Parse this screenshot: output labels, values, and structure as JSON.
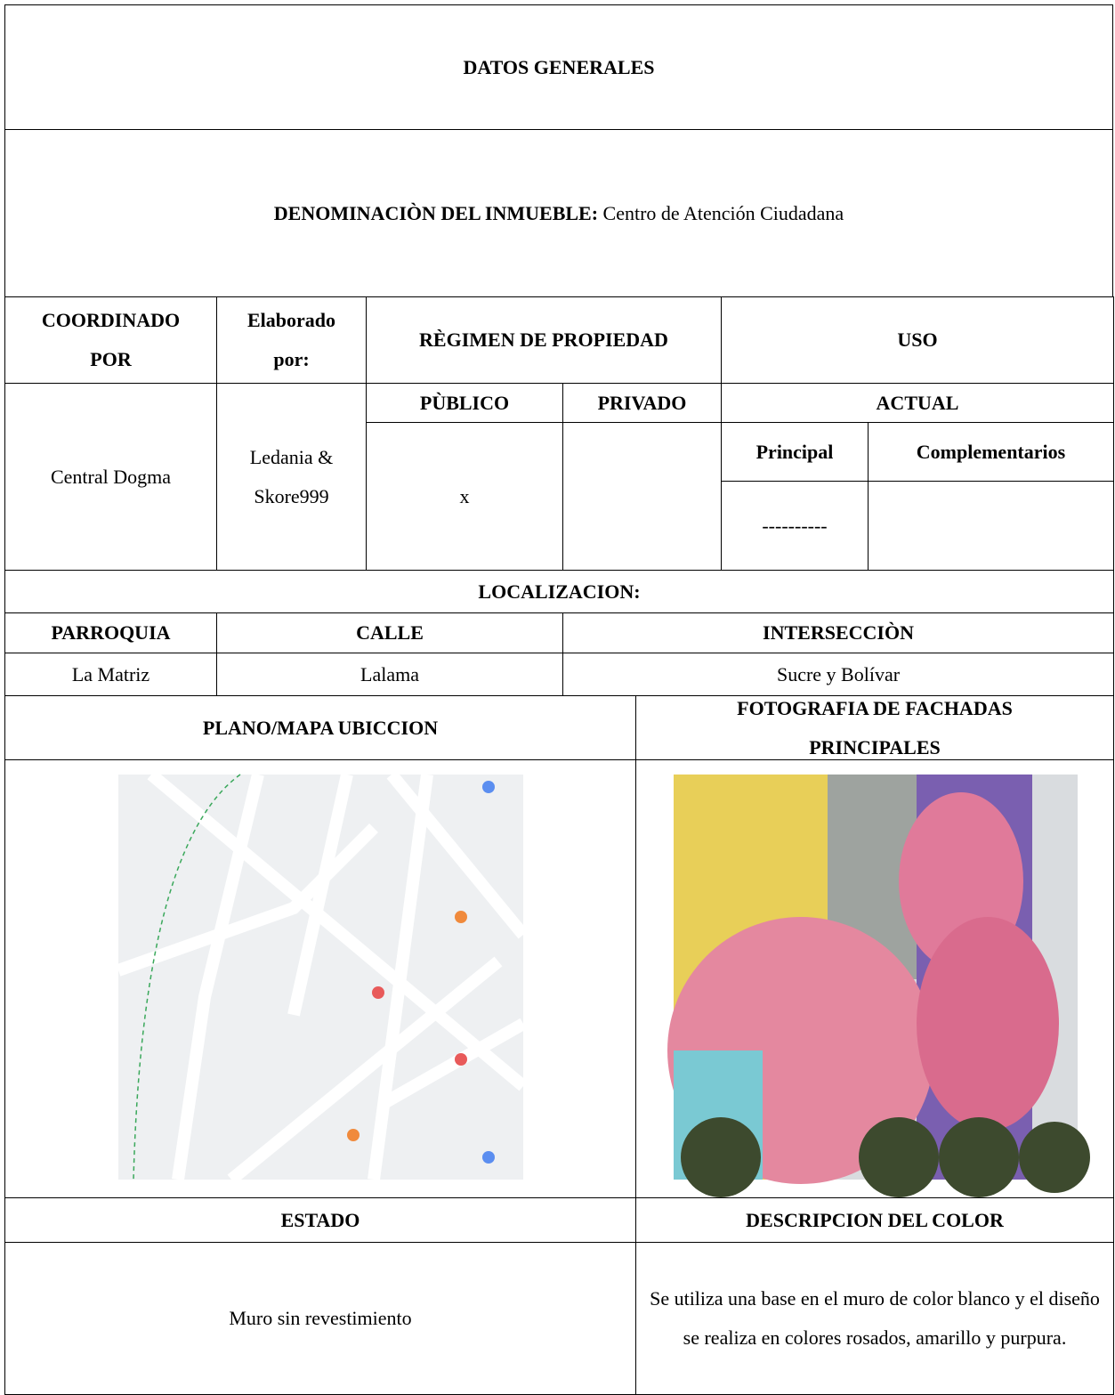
{
  "header": {
    "title": "DATOS GENERALES",
    "denomination_label": "DENOMINACIÒN DEL INMUEBLE:",
    "denomination_value": "Centro de Atención Ciudadana"
  },
  "table": {
    "coordinated_header": "COORDINADO POR",
    "elaborated_header": "Elaborado por:",
    "regime_header": "RÈGIMEN DE PROPIEDAD",
    "use_header": "USO",
    "public_header": "PÙBLICO",
    "private_header": "PRIVADO",
    "current_header": "ACTUAL",
    "principal_header": "Principal",
    "complementary_header": "Complementarios",
    "coordinated_value": "Central Dogma",
    "elaborated_value": "Ledania & Skore999",
    "public_value": "x",
    "principal_value": "----------",
    "location_header": "LOCALIZACION:",
    "parish_header": "PARROQUIA",
    "street_header": "CALLE",
    "intersection_header": "INTERSECCIÒN",
    "parish_value": "La Matriz",
    "street_value": "Lalama",
    "intersection_value": "Sucre y Bolívar",
    "map_header": "PLANO/MAPA UBICCION",
    "photo_header": "FOTOGRAFIA DE FACHADAS PRINCIPALES",
    "state_header": "ESTADO",
    "color_header": "DESCRIPCION DEL COLOR",
    "state_value": "Muro sin revestimiento",
    "color_value": "Se utiliza una base en el muro de color blanco y el diseño se realiza en colores rosados, amarillo y purpura."
  }
}
